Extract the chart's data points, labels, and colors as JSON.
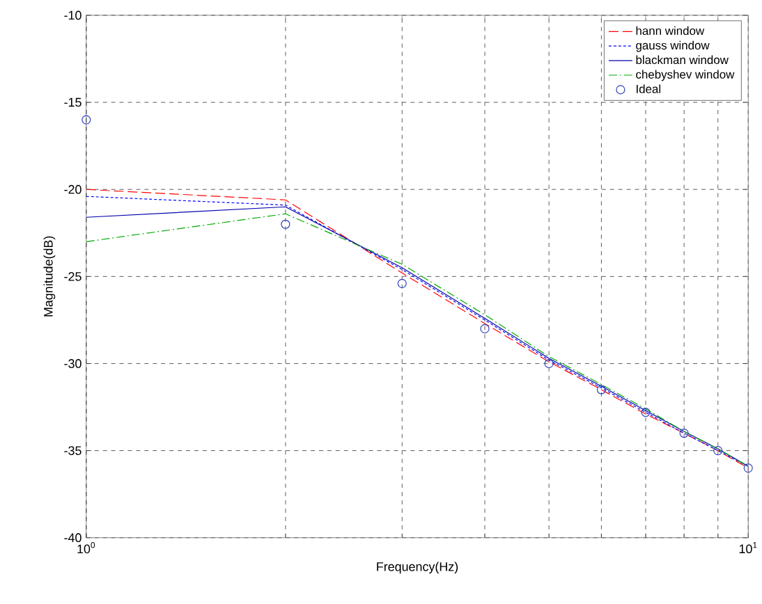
{
  "chart_data": {
    "type": "line",
    "xlabel": "Frequency(Hz)",
    "ylabel": "Magnitude(dB)",
    "log": "x",
    "grid": true,
    "legend": "top right",
    "x": [
      1,
      2,
      3,
      4,
      5,
      6,
      7,
      8,
      9,
      10
    ],
    "xlim": [
      1,
      10
    ],
    "xticks": [
      {
        "value": 1,
        "label": "10$^{0}$"
      },
      {
        "value": 10,
        "label": "10$^{1}$"
      }
    ],
    "ylim": [
      -40,
      -10
    ],
    "yticks": [
      -40,
      -35,
      -30,
      -25,
      -20,
      -15,
      -10
    ],
    "series": [
      {
        "name": "hann window",
        "color": "#ff0000",
        "line_style": "dashed",
        "values": [
          -20,
          -20.6,
          -24.8,
          -27.7,
          -29.9,
          -31.5,
          -32.9,
          -34.0,
          -35.0,
          -36.0
        ]
      },
      {
        "name": "gauss window",
        "color": "#0000ff",
        "line_style": "dotted",
        "values": [
          -20.4,
          -20.9,
          -24.6,
          -27.5,
          -29.8,
          -31.4,
          -32.8,
          -34.0,
          -35.0,
          -35.9
        ]
      },
      {
        "name": "blackman window",
        "color": "#0000aa",
        "line_style": "solid",
        "values": [
          -21.6,
          -21.0,
          -24.5,
          -27.4,
          -29.7,
          -31.3,
          -32.7,
          -33.9,
          -34.9,
          -35.9
        ]
      },
      {
        "name": "chebyshev window",
        "color": "#00aa00",
        "line_style": "dashdot",
        "values": [
          -23.0,
          -21.4,
          -24.3,
          -27.2,
          -29.6,
          -31.2,
          -32.6,
          -33.9,
          -34.9,
          -35.9
        ]
      },
      {
        "name": "Ideal",
        "type": "scatter",
        "marker": "circle",
        "color": "#3344bb",
        "values": [
          -16,
          -22,
          -25.4,
          -28,
          -30,
          -31.5,
          -32.8,
          -34,
          -35,
          -36
        ]
      }
    ]
  }
}
